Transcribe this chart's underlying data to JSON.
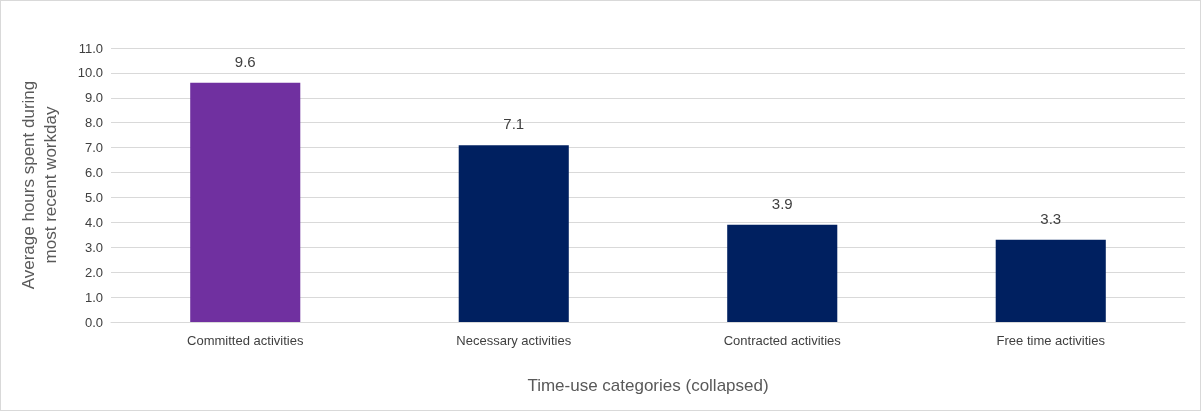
{
  "chart_data": {
    "type": "bar",
    "xlabel": "Time-use categories (collapsed)",
    "ylabel": "Average hours spent during\nmost recent workday",
    "categories": [
      "Committed activities",
      "Necessary activities",
      "Contracted activities",
      "Free time activities"
    ],
    "values": [
      9.6,
      7.1,
      3.9,
      3.3
    ],
    "colors": [
      "#7030a0",
      "#002060",
      "#002060",
      "#002060"
    ],
    "ylim": [
      0,
      11
    ],
    "yticks": [
      {
        "value": 0,
        "label": "0.0"
      },
      {
        "value": 1,
        "label": "1.0"
      },
      {
        "value": 2,
        "label": "2.0"
      },
      {
        "value": 3,
        "label": "3.0"
      },
      {
        "value": 4,
        "label": "4.0"
      },
      {
        "value": 5,
        "label": "5.0"
      },
      {
        "value": 6,
        "label": "6.0"
      },
      {
        "value": 7,
        "label": "7.0"
      },
      {
        "value": 8,
        "label": "8.0"
      },
      {
        "value": 9,
        "label": "9.0"
      },
      {
        "value": 10,
        "label": "10.0"
      },
      {
        "value": 11,
        "label": "11.0"
      }
    ],
    "grid": "y",
    "data_labels": true
  }
}
